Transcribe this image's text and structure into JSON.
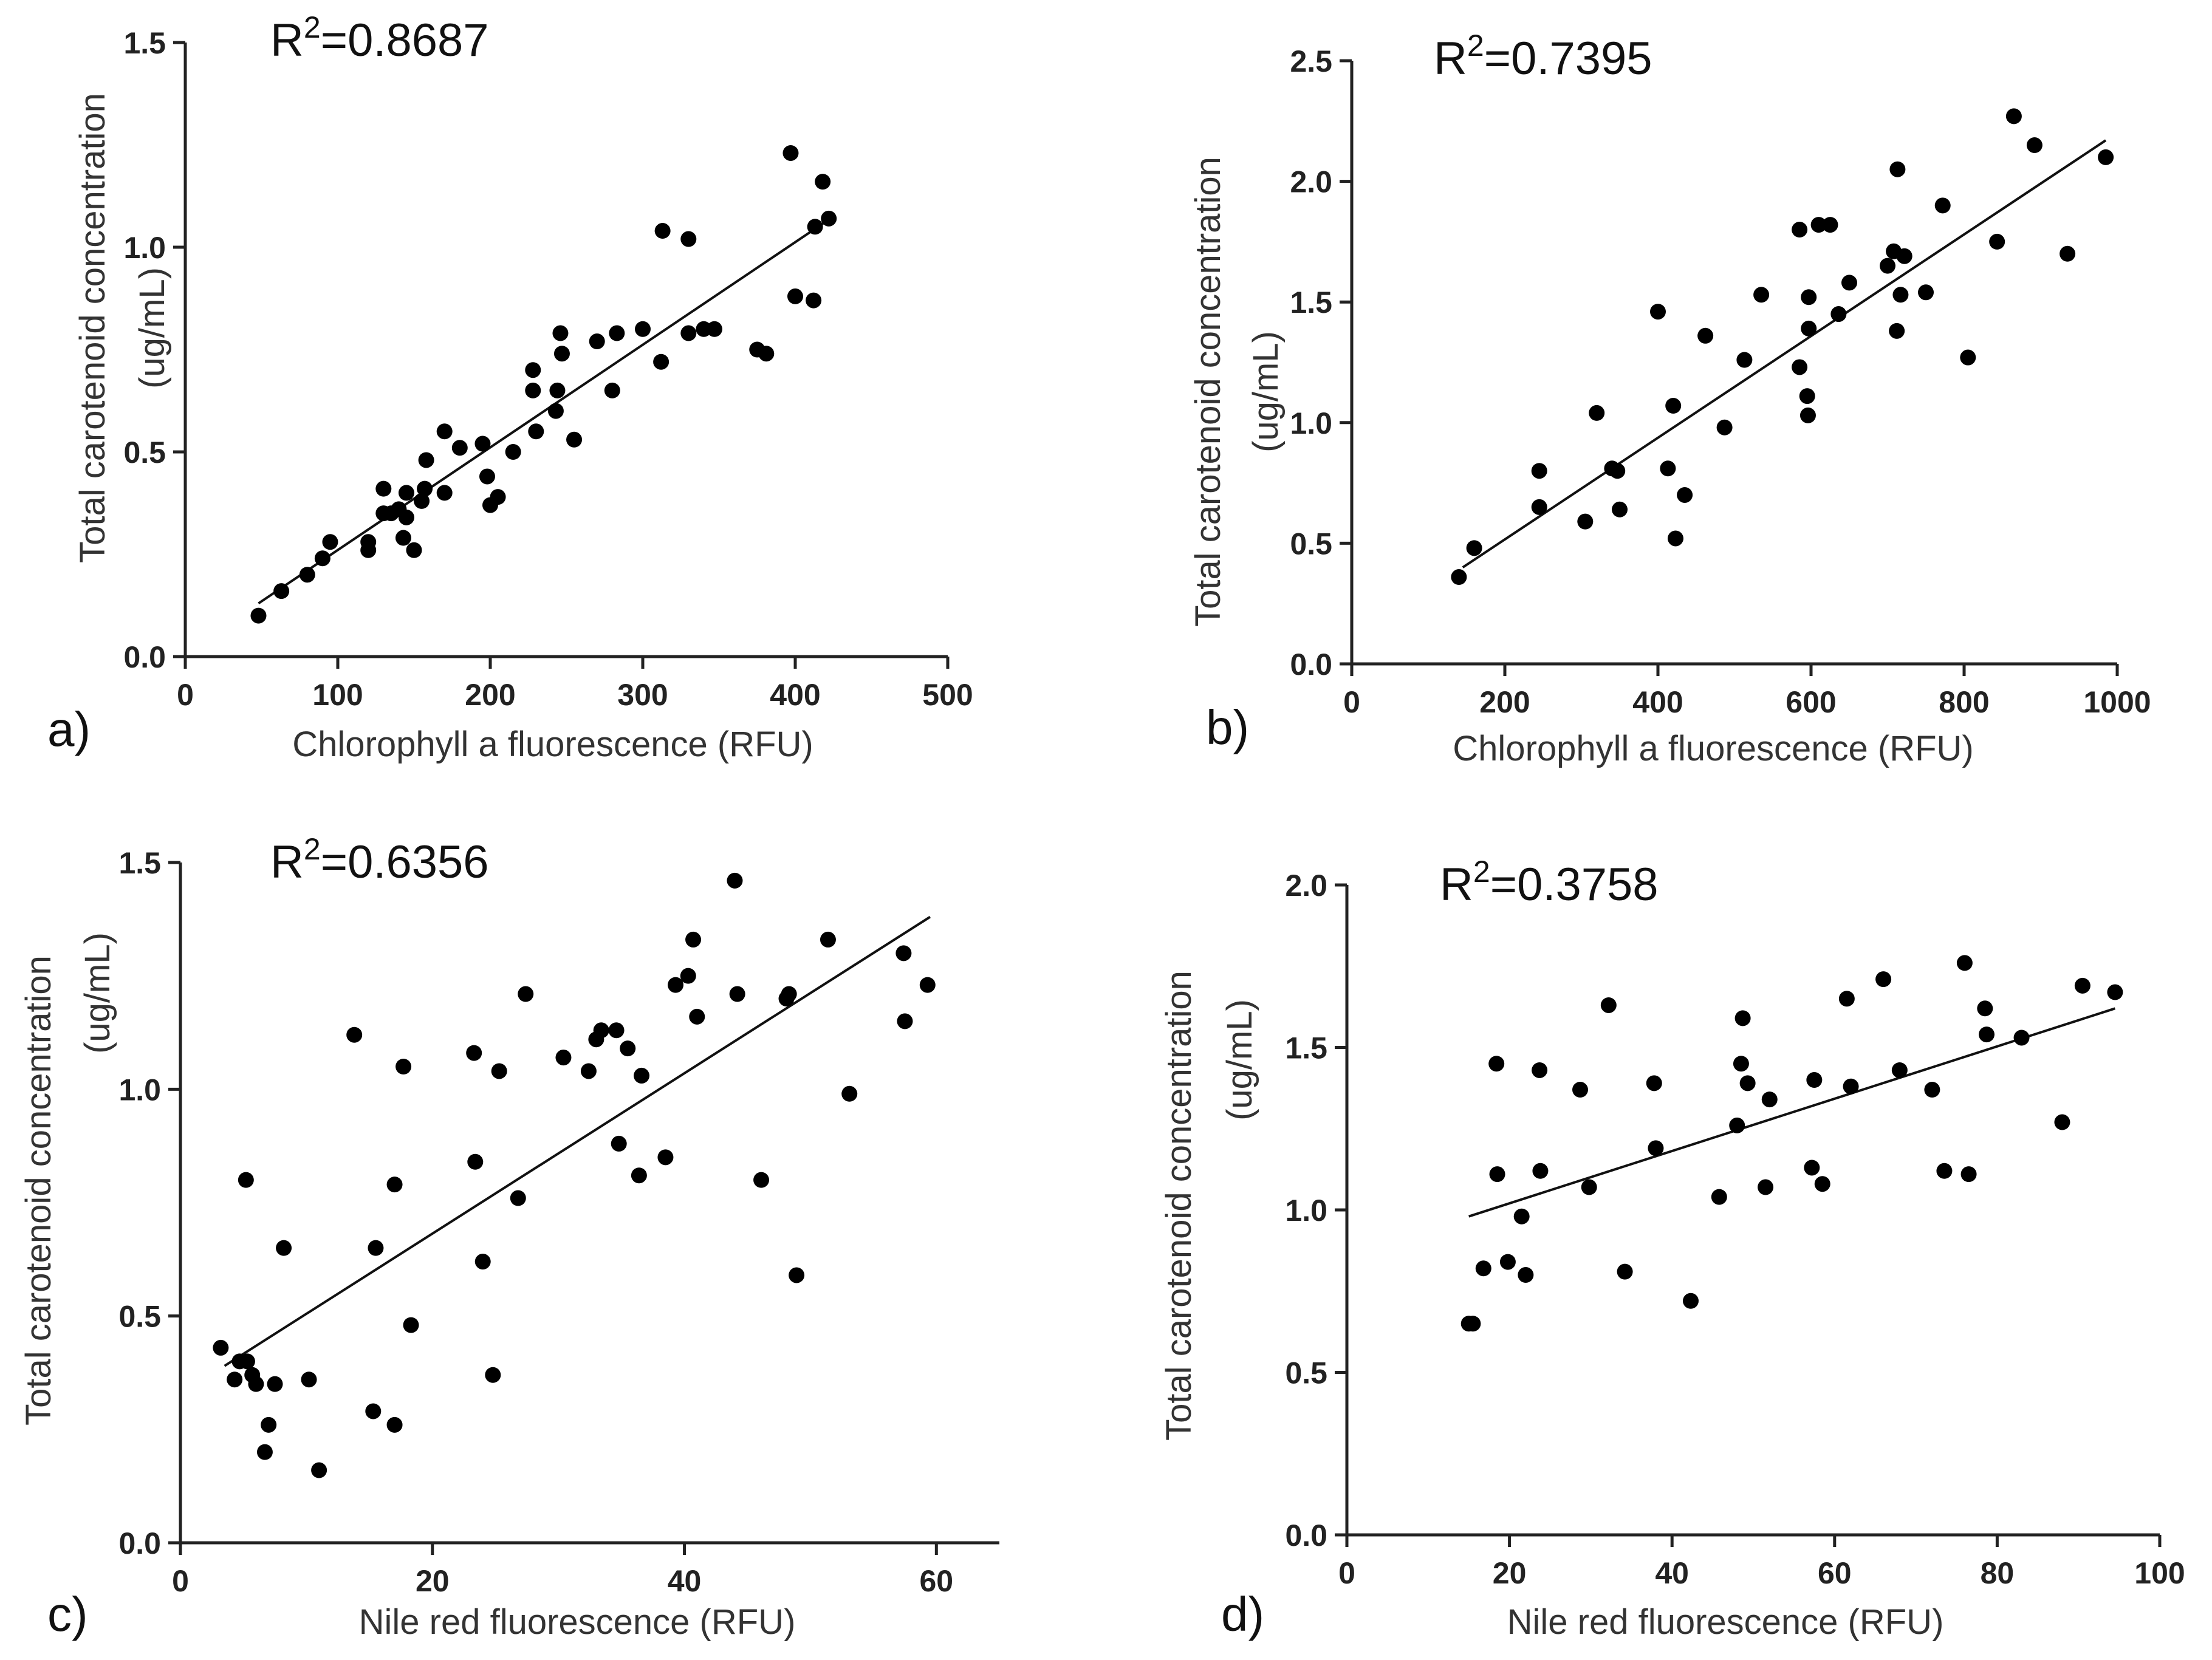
{
  "chart_data": [
    {
      "panel": "a)",
      "type": "scatter",
      "annotation": {
        "prefix": "R",
        "sup": "2",
        "value": "=0.8687"
      },
      "xlabel": "Chlorophyll a fluorescence (RFU)",
      "ylabel_line1": "Total carotenoid concentration",
      "ylabel_line2": "(ug/mL)",
      "xlim": [
        0,
        500
      ],
      "ylim": [
        0,
        1.5
      ],
      "xticks": [
        0,
        100,
        200,
        300,
        400,
        500
      ],
      "xtick_labels": [
        "0",
        "100",
        "200",
        "300",
        "400",
        "500"
      ],
      "yticks": [
        0,
        0.5,
        1.0,
        1.5
      ],
      "ytick_labels": [
        "0.0",
        "0.5",
        "1.0",
        "1.5"
      ],
      "fit": {
        "x": [
          48,
          423
        ],
        "y": [
          0.13,
          1.07
        ]
      },
      "points": [
        [
          48,
          0.1
        ],
        [
          63,
          0.16
        ],
        [
          80,
          0.2
        ],
        [
          90,
          0.24
        ],
        [
          95,
          0.28
        ],
        [
          120,
          0.28
        ],
        [
          120,
          0.26
        ],
        [
          130,
          0.41
        ],
        [
          130,
          0.35
        ],
        [
          135,
          0.35
        ],
        [
          140,
          0.36
        ],
        [
          145,
          0.34
        ],
        [
          143,
          0.29
        ],
        [
          145,
          0.4
        ],
        [
          150,
          0.26
        ],
        [
          155,
          0.38
        ],
        [
          157,
          0.41
        ],
        [
          158,
          0.48
        ],
        [
          170,
          0.55
        ],
        [
          170,
          0.4
        ],
        [
          180,
          0.51
        ],
        [
          195,
          0.52
        ],
        [
          198,
          0.44
        ],
        [
          200,
          0.37
        ],
        [
          205,
          0.39
        ],
        [
          215,
          0.5
        ],
        [
          228,
          0.65
        ],
        [
          228,
          0.7
        ],
        [
          230,
          0.55
        ],
        [
          243,
          0.6
        ],
        [
          244,
          0.65
        ],
        [
          246,
          0.79
        ],
        [
          247,
          0.74
        ],
        [
          255,
          0.53
        ],
        [
          270,
          0.77
        ],
        [
          280,
          0.65
        ],
        [
          283,
          0.79
        ],
        [
          300,
          0.8
        ],
        [
          312,
          0.72
        ],
        [
          313,
          1.04
        ],
        [
          330,
          0.79
        ],
        [
          330,
          1.02
        ],
        [
          340,
          0.8
        ],
        [
          347,
          0.8
        ],
        [
          375,
          0.75
        ],
        [
          381,
          0.74
        ],
        [
          397,
          1.23
        ],
        [
          400,
          0.88
        ],
        [
          412,
          0.87
        ],
        [
          413,
          1.05
        ],
        [
          418,
          1.16
        ],
        [
          422,
          1.07
        ]
      ]
    },
    {
      "panel": "b)",
      "type": "scatter",
      "annotation": {
        "prefix": "R",
        "sup": "2",
        "value": "=0.7395"
      },
      "xlabel": "Chlorophyll a fluorescence (RFU)",
      "ylabel_line1": "Total carotenoid concentration",
      "ylabel_line2": "(ug/mL)",
      "xlim": [
        0,
        1000
      ],
      "ylim": [
        0,
        2.5
      ],
      "xticks": [
        0,
        200,
        400,
        600,
        800,
        1000
      ],
      "xtick_labels": [
        "0",
        "200",
        "400",
        "600",
        "800",
        "1000"
      ],
      "yticks": [
        0,
        0.5,
        1.0,
        1.5,
        2.0,
        2.5
      ],
      "ytick_labels": [
        "0.0",
        "0.5",
        "1.0",
        "1.5",
        "2.0",
        "2.5"
      ],
      "fit": {
        "x": [
          145,
          985
        ],
        "y": [
          0.4,
          2.17
        ]
      },
      "points": [
        [
          140,
          0.36
        ],
        [
          160,
          0.48
        ],
        [
          245,
          0.8
        ],
        [
          245,
          0.65
        ],
        [
          305,
          0.59
        ],
        [
          320,
          1.04
        ],
        [
          340,
          0.81
        ],
        [
          347,
          0.8
        ],
        [
          350,
          0.64
        ],
        [
          400,
          1.46
        ],
        [
          413,
          0.81
        ],
        [
          420,
          1.07
        ],
        [
          423,
          0.52
        ],
        [
          435,
          0.7
        ],
        [
          462,
          1.36
        ],
        [
          487,
          0.98
        ],
        [
          513,
          1.26
        ],
        [
          535,
          1.53
        ],
        [
          585,
          1.8
        ],
        [
          585,
          1.23
        ],
        [
          595,
          1.11
        ],
        [
          596,
          1.03
        ],
        [
          597,
          1.52
        ],
        [
          597,
          1.39
        ],
        [
          610,
          1.82
        ],
        [
          625,
          1.82
        ],
        [
          636,
          1.45
        ],
        [
          650,
          1.58
        ],
        [
          700,
          1.65
        ],
        [
          708,
          1.71
        ],
        [
          712,
          1.38
        ],
        [
          713,
          2.05
        ],
        [
          717,
          1.53
        ],
        [
          722,
          1.69
        ],
        [
          750,
          1.54
        ],
        [
          772,
          1.9
        ],
        [
          805,
          1.27
        ],
        [
          843,
          1.75
        ],
        [
          865,
          2.27
        ],
        [
          892,
          2.15
        ],
        [
          935,
          1.7
        ],
        [
          985,
          2.1
        ]
      ]
    },
    {
      "panel": "c)",
      "type": "scatter",
      "annotation": {
        "prefix": "R",
        "sup": "2",
        "value": "=0.6356"
      },
      "xlabel": "Nile red fluorescence (RFU)",
      "ylabel_line1": "Total carotenoid concentration",
      "ylabel_line2": "(ug/mL)",
      "xlim": [
        0,
        65
      ],
      "ylim": [
        0,
        1.5
      ],
      "xticks": [
        0,
        20,
        40,
        60
      ],
      "xtick_labels": [
        "0",
        "20",
        "40",
        "60"
      ],
      "yticks": [
        0,
        0.5,
        1.0,
        1.5
      ],
      "ytick_labels": [
        "0.0",
        "0.5",
        "1.0",
        "1.5"
      ],
      "fit": {
        "x": [
          3.5,
          59.5
        ],
        "y": [
          0.39,
          1.38
        ]
      },
      "points": [
        [
          3.2,
          0.43
        ],
        [
          4.3,
          0.36
        ],
        [
          4.7,
          0.4
        ],
        [
          5.2,
          0.8
        ],
        [
          5.3,
          0.4
        ],
        [
          5.7,
          0.37
        ],
        [
          6.0,
          0.35
        ],
        [
          6.7,
          0.2
        ],
        [
          7.0,
          0.26
        ],
        [
          7.5,
          0.35
        ],
        [
          8.2,
          0.65
        ],
        [
          10.2,
          0.36
        ],
        [
          11.0,
          0.16
        ],
        [
          13.8,
          1.12
        ],
        [
          15.3,
          0.29
        ],
        [
          15.5,
          0.65
        ],
        [
          17.0,
          0.79
        ],
        [
          17.0,
          0.26
        ],
        [
          17.7,
          1.05
        ],
        [
          18.3,
          0.48
        ],
        [
          23.3,
          1.08
        ],
        [
          23.4,
          0.84
        ],
        [
          24.0,
          0.62
        ],
        [
          24.8,
          0.37
        ],
        [
          25.3,
          1.04
        ],
        [
          26.8,
          0.76
        ],
        [
          27.4,
          1.21
        ],
        [
          30.4,
          1.07
        ],
        [
          32.4,
          1.04
        ],
        [
          33.0,
          1.11
        ],
        [
          33.4,
          1.13
        ],
        [
          34.6,
          1.13
        ],
        [
          34.8,
          0.88
        ],
        [
          35.5,
          1.09
        ],
        [
          36.4,
          0.81
        ],
        [
          36.6,
          1.03
        ],
        [
          38.5,
          0.85
        ],
        [
          39.3,
          1.23
        ],
        [
          40.3,
          1.25
        ],
        [
          40.7,
          1.33
        ],
        [
          41.0,
          1.16
        ],
        [
          44.0,
          1.46
        ],
        [
          44.2,
          1.21
        ],
        [
          46.1,
          0.8
        ],
        [
          48.1,
          1.2
        ],
        [
          48.3,
          1.21
        ],
        [
          48.9,
          0.59
        ],
        [
          51.4,
          1.33
        ],
        [
          53.1,
          0.99
        ],
        [
          57.4,
          1.3
        ],
        [
          57.5,
          1.15
        ],
        [
          59.3,
          1.23
        ]
      ]
    },
    {
      "panel": "d)",
      "type": "scatter",
      "annotation": {
        "prefix": "R",
        "sup": "2",
        "value": "=0.3758"
      },
      "xlabel": "Nile red fluorescence (RFU)",
      "ylabel_line1": "Total carotenoid concentration",
      "ylabel_line2": "(ug/mL)",
      "xlim": [
        0,
        100
      ],
      "ylim": [
        0,
        2.0
      ],
      "xticks": [
        0,
        20,
        40,
        60,
        80,
        100
      ],
      "xtick_labels": [
        "0",
        "20",
        "40",
        "60",
        "80",
        "100"
      ],
      "yticks": [
        0,
        0.5,
        1.0,
        1.5,
        2.0
      ],
      "ytick_labels": [
        "0.0",
        "0.5",
        "1.0",
        "1.5",
        "2.0"
      ],
      "fit": {
        "x": [
          15,
          94.5
        ],
        "y": [
          0.98,
          1.62
        ]
      },
      "points": [
        [
          15,
          0.65
        ],
        [
          15.5,
          0.65
        ],
        [
          16.8,
          0.82
        ],
        [
          18.4,
          1.45
        ],
        [
          18.5,
          1.11
        ],
        [
          19.8,
          0.84
        ],
        [
          21.5,
          0.98
        ],
        [
          22,
          0.8
        ],
        [
          23.7,
          1.43
        ],
        [
          23.8,
          1.12
        ],
        [
          28.7,
          1.37
        ],
        [
          29.8,
          1.07
        ],
        [
          32.2,
          1.63
        ],
        [
          34.2,
          0.81
        ],
        [
          37.8,
          1.39
        ],
        [
          38,
          1.19
        ],
        [
          42.3,
          0.72
        ],
        [
          45.8,
          1.04
        ],
        [
          48,
          1.26
        ],
        [
          48.5,
          1.45
        ],
        [
          48.7,
          1.59
        ],
        [
          49.3,
          1.39
        ],
        [
          51.5,
          1.07
        ],
        [
          52,
          1.34
        ],
        [
          57.2,
          1.13
        ],
        [
          57.5,
          1.4
        ],
        [
          58.5,
          1.08
        ],
        [
          61.5,
          1.65
        ],
        [
          62,
          1.38
        ],
        [
          68,
          1.43
        ],
        [
          66,
          1.71
        ],
        [
          72,
          1.37
        ],
        [
          73.5,
          1.12
        ],
        [
          76,
          1.76
        ],
        [
          76.5,
          1.11
        ],
        [
          78.5,
          1.62
        ],
        [
          78.7,
          1.54
        ],
        [
          83,
          1.53
        ],
        [
          88,
          1.27
        ],
        [
          90.5,
          1.69
        ],
        [
          94.5,
          1.67
        ]
      ]
    }
  ]
}
